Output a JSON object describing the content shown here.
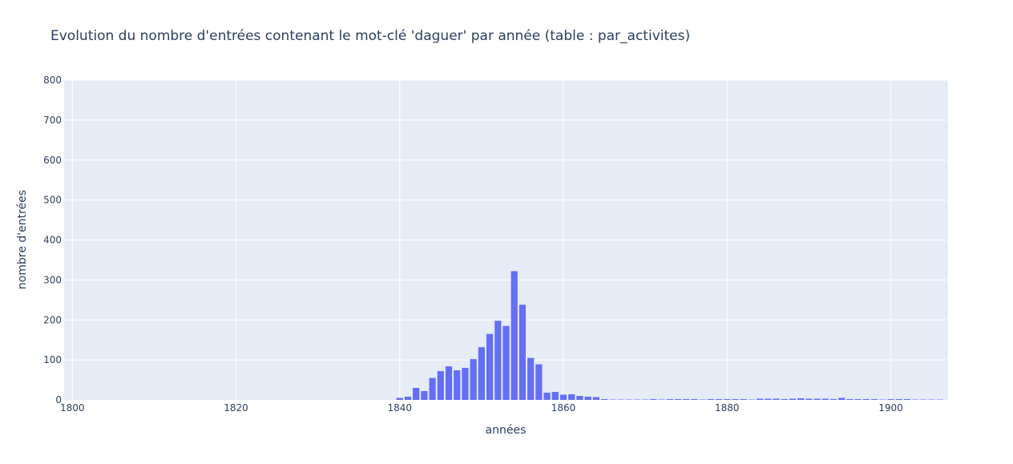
{
  "chart_data": {
    "type": "bar",
    "title": "Evolution du nombre d'entrées contenant le mot-clé 'daguer' par année (table : par_activites)",
    "xlabel": "années",
    "ylabel": "nombre d'entrées",
    "xlim": [
      1799,
      1907
    ],
    "ylim": [
      0,
      800
    ],
    "xticks": [
      1800,
      1820,
      1840,
      1860,
      1880,
      1900
    ],
    "yticks": [
      0,
      100,
      200,
      300,
      400,
      500,
      600,
      700,
      800
    ],
    "grid": true,
    "bar_color": "#636efa",
    "plot_bg": "#e5ecf6",
    "x": [
      1840,
      1841,
      1842,
      1843,
      1844,
      1845,
      1846,
      1847,
      1848,
      1849,
      1850,
      1851,
      1852,
      1853,
      1854,
      1855,
      1856,
      1857,
      1858,
      1859,
      1860,
      1861,
      1862,
      1863,
      1864,
      1865,
      1866,
      1867,
      1868,
      1869,
      1870,
      1871,
      1872,
      1873,
      1874,
      1875,
      1876,
      1877,
      1878,
      1879,
      1880,
      1881,
      1882,
      1883,
      1884,
      1885,
      1886,
      1887,
      1888,
      1889,
      1890,
      1891,
      1892,
      1893,
      1894,
      1895,
      1896,
      1897,
      1898,
      1899,
      1900,
      1901,
      1902,
      1903,
      1904,
      1905,
      1906
    ],
    "values": [
      5,
      8,
      30,
      22,
      55,
      72,
      84,
      74,
      80,
      102,
      132,
      165,
      198,
      185,
      322,
      238,
      105,
      89,
      18,
      20,
      13,
      14,
      10,
      8,
      7,
      2,
      1,
      1,
      1,
      1,
      1,
      2,
      1,
      2,
      2,
      2,
      2,
      1,
      2,
      2,
      2,
      2,
      2,
      1,
      3,
      3,
      3,
      2,
      3,
      4,
      3,
      3,
      3,
      2,
      5,
      2,
      2,
      2,
      2,
      1,
      2,
      2,
      2,
      1,
      1,
      1,
      1
    ]
  }
}
